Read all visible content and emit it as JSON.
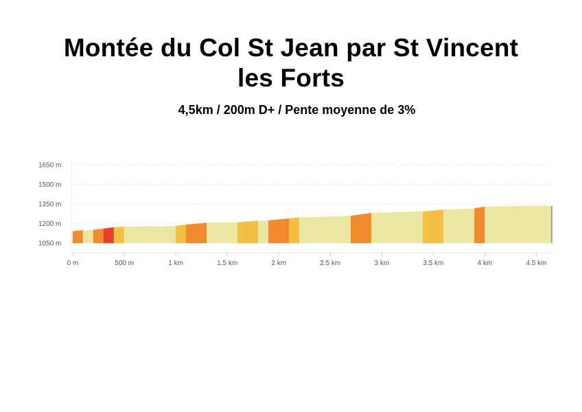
{
  "header": {
    "title_line1": "Montée du Col St Jean par St Vincent",
    "title_line2": "les Forts",
    "subtitle": "4,5km / 200m D+ / Pente moyenne de 3%"
  },
  "chart_data": {
    "type": "area",
    "title": "",
    "xlabel": "",
    "ylabel": "",
    "xlim": [
      0,
      4.65
    ],
    "ylim": [
      1050,
      1650
    ],
    "grid": true,
    "x_ticks": [
      0,
      0.5,
      1,
      1.5,
      2,
      2.5,
      3,
      3.5,
      4,
      4.5
    ],
    "x_tick_labels": [
      "0 m",
      "500 m",
      "1 km",
      "1.5 km",
      "2 km",
      "2.5 km",
      "3 km",
      "3.5 km",
      "4 km",
      "4.5 km"
    ],
    "y_ticks": [
      1050,
      1200,
      1350,
      1500,
      1650
    ],
    "y_tick_labels": [
      "1050 m",
      "1200 m",
      "1350 m",
      "1500 m",
      "1650 m"
    ],
    "slope_colors": {
      "gentle": "#e9e7a3",
      "moderate": "#f3c043",
      "steep": "#f08a2a",
      "very_steep": "#e8402b"
    },
    "segments": [
      {
        "x0": 0.0,
        "x1": 0.1,
        "y0": 1140,
        "y1": 1148,
        "class": "steep"
      },
      {
        "x0": 0.1,
        "x1": 0.2,
        "y0": 1148,
        "y1": 1150,
        "class": "gentle"
      },
      {
        "x0": 0.2,
        "x1": 0.3,
        "y0": 1150,
        "y1": 1160,
        "class": "steep"
      },
      {
        "x0": 0.3,
        "x1": 0.4,
        "y0": 1160,
        "y1": 1170,
        "class": "very_steep"
      },
      {
        "x0": 0.4,
        "x1": 0.5,
        "y0": 1170,
        "y1": 1175,
        "class": "moderate"
      },
      {
        "x0": 0.5,
        "x1": 1.0,
        "y0": 1175,
        "y1": 1180,
        "class": "gentle"
      },
      {
        "x0": 1.0,
        "x1": 1.1,
        "y0": 1180,
        "y1": 1190,
        "class": "moderate"
      },
      {
        "x0": 1.1,
        "x1": 1.3,
        "y0": 1190,
        "y1": 1205,
        "class": "steep"
      },
      {
        "x0": 1.3,
        "x1": 1.6,
        "y0": 1205,
        "y1": 1208,
        "class": "gentle"
      },
      {
        "x0": 1.6,
        "x1": 1.8,
        "y0": 1208,
        "y1": 1220,
        "class": "moderate"
      },
      {
        "x0": 1.8,
        "x1": 1.9,
        "y0": 1220,
        "y1": 1222,
        "class": "gentle"
      },
      {
        "x0": 1.9,
        "x1": 2.1,
        "y0": 1222,
        "y1": 1238,
        "class": "steep"
      },
      {
        "x0": 2.1,
        "x1": 2.2,
        "y0": 1238,
        "y1": 1245,
        "class": "moderate"
      },
      {
        "x0": 2.2,
        "x1": 2.7,
        "y0": 1245,
        "y1": 1258,
        "class": "gentle"
      },
      {
        "x0": 2.7,
        "x1": 2.9,
        "y0": 1258,
        "y1": 1280,
        "class": "steep"
      },
      {
        "x0": 2.9,
        "x1": 3.4,
        "y0": 1280,
        "y1": 1292,
        "class": "gentle"
      },
      {
        "x0": 3.4,
        "x1": 3.6,
        "y0": 1292,
        "y1": 1305,
        "class": "moderate"
      },
      {
        "x0": 3.6,
        "x1": 3.9,
        "y0": 1305,
        "y1": 1315,
        "class": "gentle"
      },
      {
        "x0": 3.9,
        "x1": 4.0,
        "y0": 1315,
        "y1": 1328,
        "class": "steep"
      },
      {
        "x0": 4.0,
        "x1": 4.5,
        "y0": 1328,
        "y1": 1335,
        "class": "gentle"
      },
      {
        "x0": 4.5,
        "x1": 4.65,
        "y0": 1335,
        "y1": 1333,
        "class": "gentle"
      }
    ]
  }
}
